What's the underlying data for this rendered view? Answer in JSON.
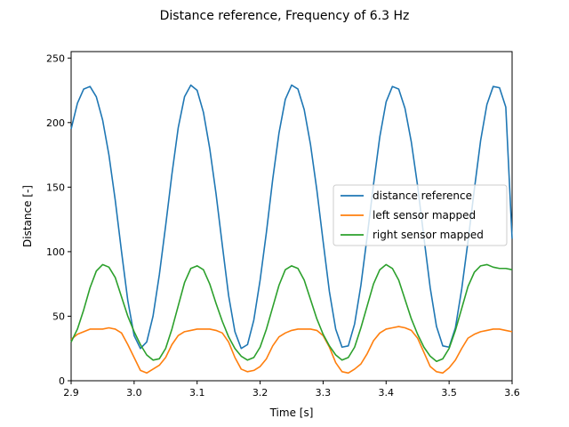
{
  "chart_data": {
    "type": "line",
    "title": "Distance reference, Frequency of 6.3 Hz",
    "xlabel": "Time [s]",
    "ylabel": "Distance [-]",
    "xlim": [
      2.9,
      3.6
    ],
    "ylim": [
      0,
      255
    ],
    "xticks": [
      2.9,
      3.0,
      3.1,
      3.2,
      3.3,
      3.4,
      3.5,
      3.6
    ],
    "yticks": [
      0,
      50,
      100,
      150,
      200,
      250
    ],
    "grid": false,
    "legend_position": "center-right",
    "series": [
      {
        "name": "distance reference",
        "color": "#1f77b4",
        "x": [
          2.9,
          2.91,
          2.92,
          2.93,
          2.94,
          2.95,
          2.96,
          2.97,
          2.98,
          2.99,
          3.0,
          3.01,
          3.02,
          3.03,
          3.04,
          3.05,
          3.06,
          3.07,
          3.08,
          3.09,
          3.1,
          3.11,
          3.12,
          3.13,
          3.14,
          3.15,
          3.16,
          3.17,
          3.18,
          3.19,
          3.2,
          3.21,
          3.22,
          3.23,
          3.24,
          3.25,
          3.26,
          3.27,
          3.28,
          3.29,
          3.3,
          3.31,
          3.32,
          3.33,
          3.34,
          3.35,
          3.36,
          3.37,
          3.38,
          3.39,
          3.4,
          3.41,
          3.42,
          3.43,
          3.44,
          3.45,
          3.46,
          3.47,
          3.48,
          3.49,
          3.5,
          3.51,
          3.52,
          3.53,
          3.54,
          3.55,
          3.56,
          3.57,
          3.58,
          3.59,
          3.6
        ],
        "y": [
          195,
          215,
          226,
          228,
          220,
          202,
          175,
          140,
          100,
          62,
          35,
          25,
          30,
          50,
          82,
          120,
          160,
          196,
          220,
          229,
          225,
          208,
          180,
          145,
          105,
          66,
          38,
          25,
          28,
          47,
          78,
          115,
          156,
          192,
          218,
          229,
          226,
          210,
          183,
          148,
          108,
          69,
          40,
          26,
          27,
          44,
          74,
          112,
          152,
          189,
          216,
          228,
          226,
          211,
          185,
          151,
          111,
          72,
          42,
          27,
          26,
          41,
          71,
          108,
          148,
          186,
          214,
          228,
          227,
          212,
          110
        ]
      },
      {
        "name": "left sensor mapped",
        "color": "#ff7f0e",
        "x": [
          2.9,
          2.91,
          2.92,
          2.93,
          2.94,
          2.95,
          2.96,
          2.97,
          2.98,
          2.99,
          3.0,
          3.01,
          3.02,
          3.03,
          3.04,
          3.05,
          3.06,
          3.07,
          3.08,
          3.09,
          3.1,
          3.11,
          3.12,
          3.13,
          3.14,
          3.15,
          3.16,
          3.17,
          3.18,
          3.19,
          3.2,
          3.21,
          3.22,
          3.23,
          3.24,
          3.25,
          3.26,
          3.27,
          3.28,
          3.29,
          3.3,
          3.31,
          3.32,
          3.33,
          3.34,
          3.35,
          3.36,
          3.37,
          3.38,
          3.39,
          3.4,
          3.41,
          3.42,
          3.43,
          3.44,
          3.45,
          3.46,
          3.47,
          3.48,
          3.49,
          3.5,
          3.51,
          3.52,
          3.53,
          3.54,
          3.55,
          3.56,
          3.57,
          3.58,
          3.59,
          3.6
        ],
        "y": [
          32,
          36,
          38,
          40,
          40,
          40,
          41,
          40,
          37,
          28,
          18,
          8,
          6,
          9,
          12,
          18,
          28,
          35,
          38,
          39,
          40,
          40,
          40,
          39,
          37,
          30,
          18,
          9,
          7,
          8,
          11,
          17,
          27,
          34,
          37,
          39,
          40,
          40,
          40,
          39,
          35,
          26,
          14,
          7,
          6,
          9,
          13,
          21,
          31,
          37,
          40,
          41,
          42,
          41,
          39,
          33,
          22,
          11,
          7,
          6,
          10,
          16,
          25,
          33,
          36,
          38,
          39,
          40,
          40,
          39,
          38
        ]
      },
      {
        "name": "right sensor mapped",
        "color": "#2ca02c",
        "x": [
          2.9,
          2.91,
          2.92,
          2.93,
          2.94,
          2.95,
          2.96,
          2.97,
          2.98,
          2.99,
          3.0,
          3.01,
          3.02,
          3.03,
          3.04,
          3.05,
          3.06,
          3.07,
          3.08,
          3.09,
          3.1,
          3.11,
          3.12,
          3.13,
          3.14,
          3.15,
          3.16,
          3.17,
          3.18,
          3.19,
          3.2,
          3.21,
          3.22,
          3.23,
          3.24,
          3.25,
          3.26,
          3.27,
          3.28,
          3.29,
          3.3,
          3.31,
          3.32,
          3.33,
          3.34,
          3.35,
          3.36,
          3.37,
          3.38,
          3.39,
          3.4,
          3.41,
          3.42,
          3.43,
          3.44,
          3.45,
          3.46,
          3.47,
          3.48,
          3.49,
          3.5,
          3.51,
          3.52,
          3.53,
          3.54,
          3.55,
          3.56,
          3.57,
          3.58,
          3.59,
          3.6
        ],
        "y": [
          30,
          40,
          55,
          72,
          85,
          90,
          88,
          80,
          65,
          50,
          38,
          28,
          20,
          16,
          17,
          25,
          40,
          58,
          76,
          87,
          89,
          86,
          75,
          60,
          46,
          34,
          25,
          19,
          16,
          18,
          26,
          40,
          57,
          74,
          86,
          89,
          87,
          78,
          63,
          48,
          36,
          27,
          20,
          16,
          18,
          26,
          41,
          58,
          75,
          86,
          90,
          87,
          78,
          63,
          48,
          36,
          26,
          19,
          15,
          17,
          25,
          39,
          56,
          73,
          84,
          89,
          90,
          88,
          87,
          87,
          86
        ]
      }
    ]
  }
}
